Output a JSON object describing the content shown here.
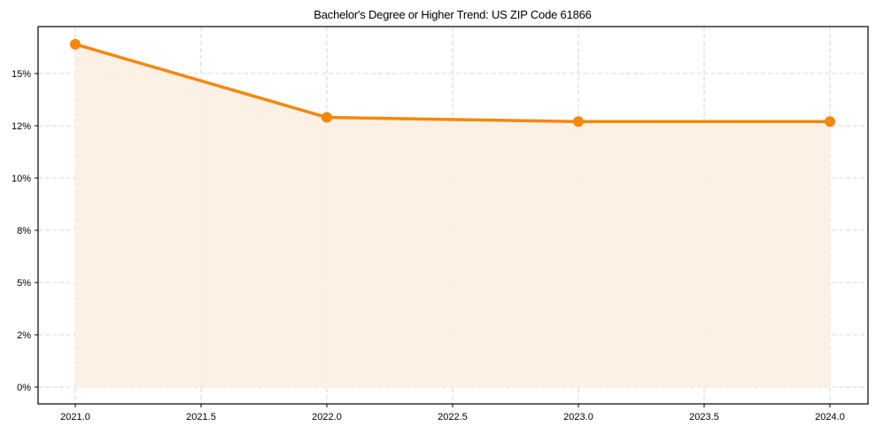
{
  "chart_data": {
    "type": "line",
    "title": "Bachelor's Degree or Higher Trend: US ZIP Code 61866",
    "xlabel": "",
    "ylabel": "",
    "x": [
      2021,
      2022,
      2023,
      2024
    ],
    "series": [
      {
        "name": "Bachelor's Degree or Higher",
        "values": [
          16.4,
          12.9,
          12.7,
          12.7
        ],
        "color": "#f5870c",
        "fill_color": "#fdf0e2",
        "marker": "circle"
      }
    ],
    "xticks": [
      2021.0,
      2021.5,
      2022.0,
      2022.5,
      2023.0,
      2023.5,
      2024.0
    ],
    "xtick_labels": [
      "2021.0",
      "2021.5",
      "2022.0",
      "2022.5",
      "2023.0",
      "2023.5",
      "2024.0"
    ],
    "yticks": [
      0,
      2.5,
      5,
      7.5,
      10,
      12.5,
      15
    ],
    "ytick_labels": [
      "0%",
      "2%",
      "5%",
      "8%",
      "10%",
      "12%",
      "15%"
    ],
    "xlim": [
      2020.85,
      2024.15
    ],
    "ylim": [
      -0.8,
      17.2
    ],
    "grid": true,
    "grid_style": "dashed",
    "legend": null
  }
}
